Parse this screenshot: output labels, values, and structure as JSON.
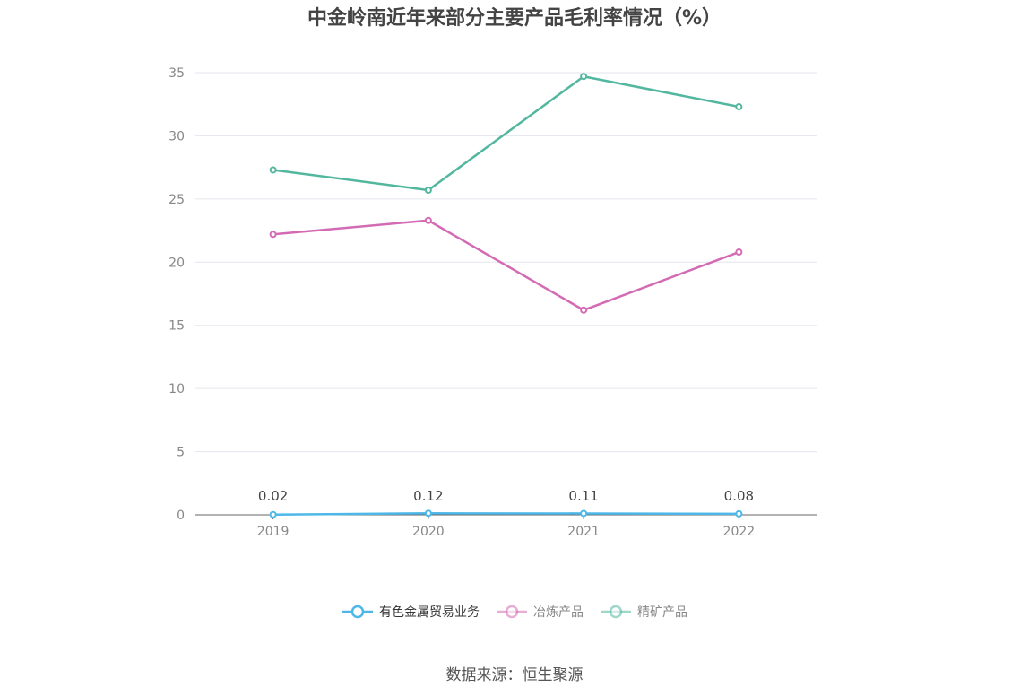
{
  "title": "中金岭南近年来部分主要产品毛利率情况（%）",
  "source": "数据来源：恒生聚源",
  "chart_data": {
    "type": "line",
    "categories": [
      "2019",
      "2020",
      "2021",
      "2022"
    ],
    "ylim": [
      0,
      35
    ],
    "yticks": [
      0,
      5,
      10,
      15,
      20,
      25,
      30,
      35
    ],
    "grid": true,
    "legend_position": "bottom",
    "series": [
      {
        "name": "有色金属贸易业务",
        "color": "#4db8e8",
        "values": [
          0.02,
          0.12,
          0.11,
          0.08
        ],
        "labels": [
          "0.02",
          "0.12",
          "0.11",
          "0.08"
        ]
      },
      {
        "name": "冶炼产品",
        "color": "#d36bb4",
        "values": [
          22.2,
          23.3,
          16.2,
          20.8
        ]
      },
      {
        "name": "精矿产品",
        "color": "#52b79e",
        "values": [
          27.3,
          25.7,
          34.7,
          32.3
        ]
      }
    ]
  }
}
